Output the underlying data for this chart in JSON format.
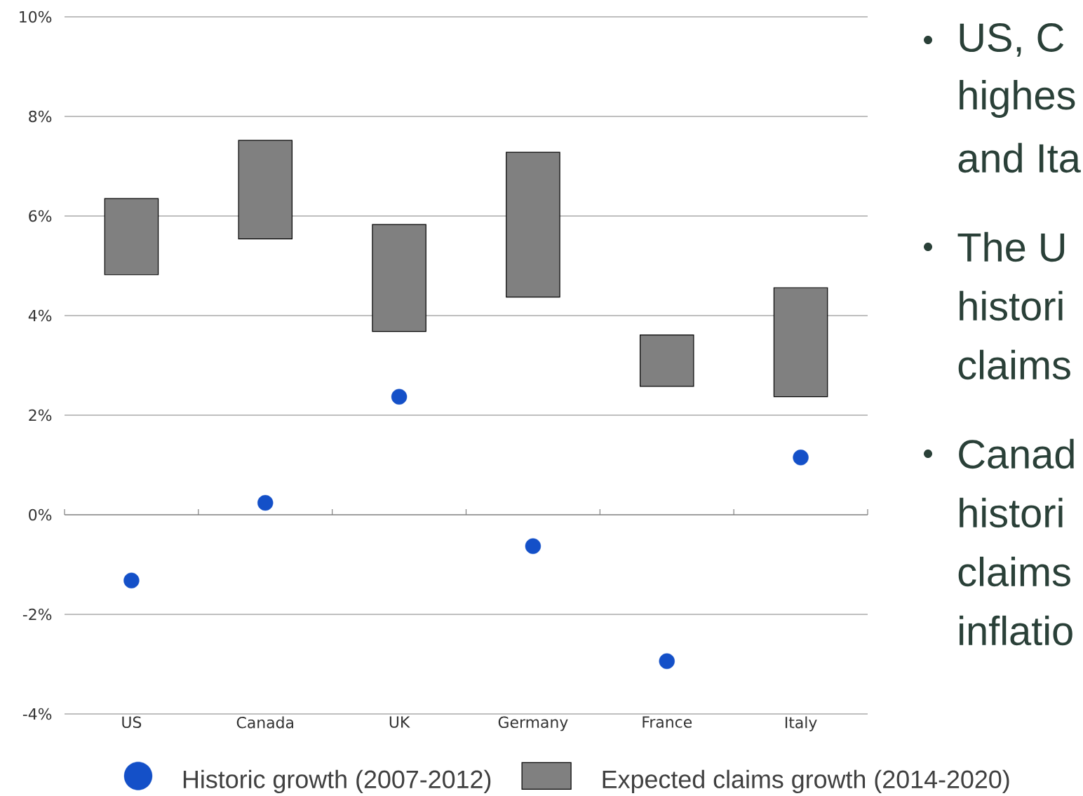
{
  "chart_data": {
    "type": "scatter",
    "categories": [
      "US",
      "Canada",
      "UK",
      "Germany",
      "France",
      "Italy"
    ],
    "series": [
      {
        "name": "Historic growth (2007-2012)",
        "color": "#1450c8",
        "marker": "circle",
        "values": [
          -1.32,
          0.24,
          2.37,
          -0.63,
          -2.94,
          1.15
        ]
      },
      {
        "name": "Expected claims growth (2014-2020)",
        "type": "bar",
        "color": "#808080",
        "base": [
          4.82,
          5.54,
          3.68,
          4.37,
          2.58,
          2.37
        ],
        "values": [
          1.53,
          1.98,
          2.15,
          2.91,
          1.03,
          2.19
        ]
      }
    ],
    "ylim": [
      -4,
      10
    ],
    "yticks": [
      {
        "value": -4,
        "label": "-4%"
      },
      {
        "value": -2,
        "label": "-2%"
      },
      {
        "value": 0,
        "label": "0%"
      },
      {
        "value": 2,
        "label": "2%"
      },
      {
        "value": 4,
        "label": "4%"
      },
      {
        "value": 6,
        "label": "6%"
      },
      {
        "value": 8,
        "label": "8%"
      },
      {
        "value": 10,
        "label": "10%"
      }
    ],
    "grid": "y",
    "legend": "bottom",
    "annotations": [
      "US, C",
      "highes",
      "and Ita",
      "The U",
      "histori",
      "claims",
      "Canad",
      "histori",
      "claims",
      "inflatio"
    ]
  }
}
